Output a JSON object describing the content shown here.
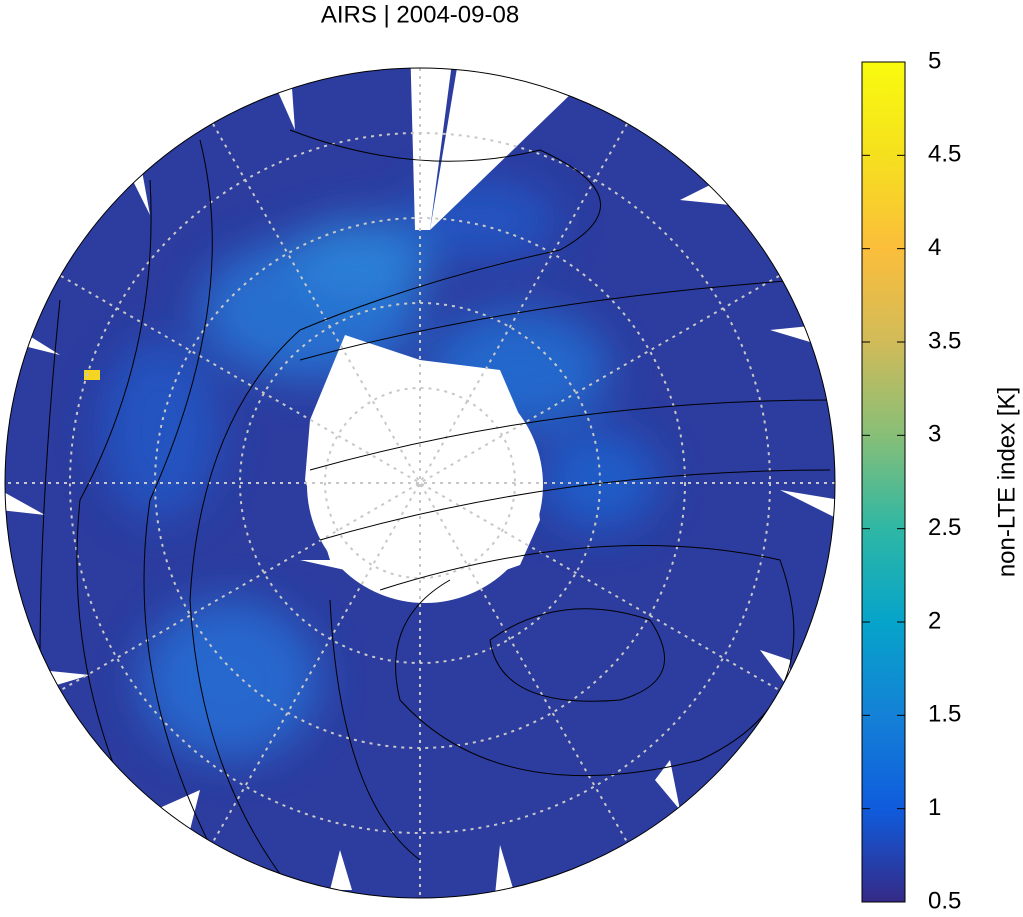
{
  "chart_data": {
    "type": "map",
    "title": "AIRS | 2004-09-08",
    "colorbar": {
      "label": "non-LTE index [K]",
      "lim": [
        0.5,
        5
      ],
      "ticks": [
        0.5,
        1,
        1.5,
        2,
        2.5,
        3,
        3.5,
        4,
        4.5,
        5
      ],
      "colormap": [
        "#352a87",
        "#0f5cdd",
        "#1481d6",
        "#06a4ca",
        "#2eb7a4",
        "#87bf77",
        "#d1bb59",
        "#fbbe3b",
        "#f5e01e",
        "#f9fb0e"
      ]
    }
  }
}
